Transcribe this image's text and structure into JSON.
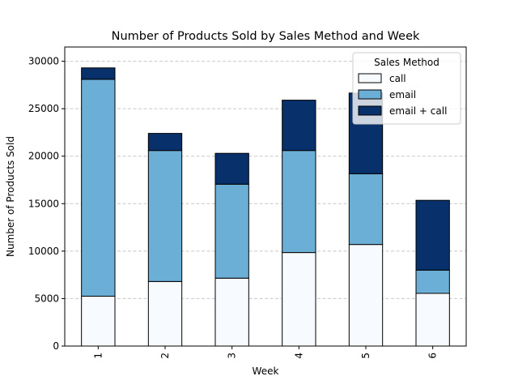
{
  "chart_data": {
    "type": "bar",
    "stacked": true,
    "title": "Number of Products Sold by Sales Method and Week",
    "xlabel": "Week",
    "ylabel": "Number of Products Sold",
    "categories": [
      "1",
      "2",
      "3",
      "4",
      "5",
      "6"
    ],
    "series": [
      {
        "name": "call",
        "color": "#f7fbff",
        "values": [
          5250,
          6800,
          7150,
          9850,
          10700,
          5550
        ]
      },
      {
        "name": "email",
        "color": "#6baed6",
        "values": [
          22850,
          13800,
          9900,
          10750,
          7450,
          2450
        ]
      },
      {
        "name": "email + call",
        "color": "#08306b",
        "values": [
          1200,
          1800,
          3250,
          5300,
          8500,
          7350
        ]
      }
    ],
    "ylim": [
      0,
      31500
    ],
    "yticks": [
      0,
      5000,
      10000,
      15000,
      20000,
      25000,
      30000
    ],
    "grid": "y-dashed",
    "legend": {
      "title": "Sales Method",
      "position": "top-right"
    }
  }
}
